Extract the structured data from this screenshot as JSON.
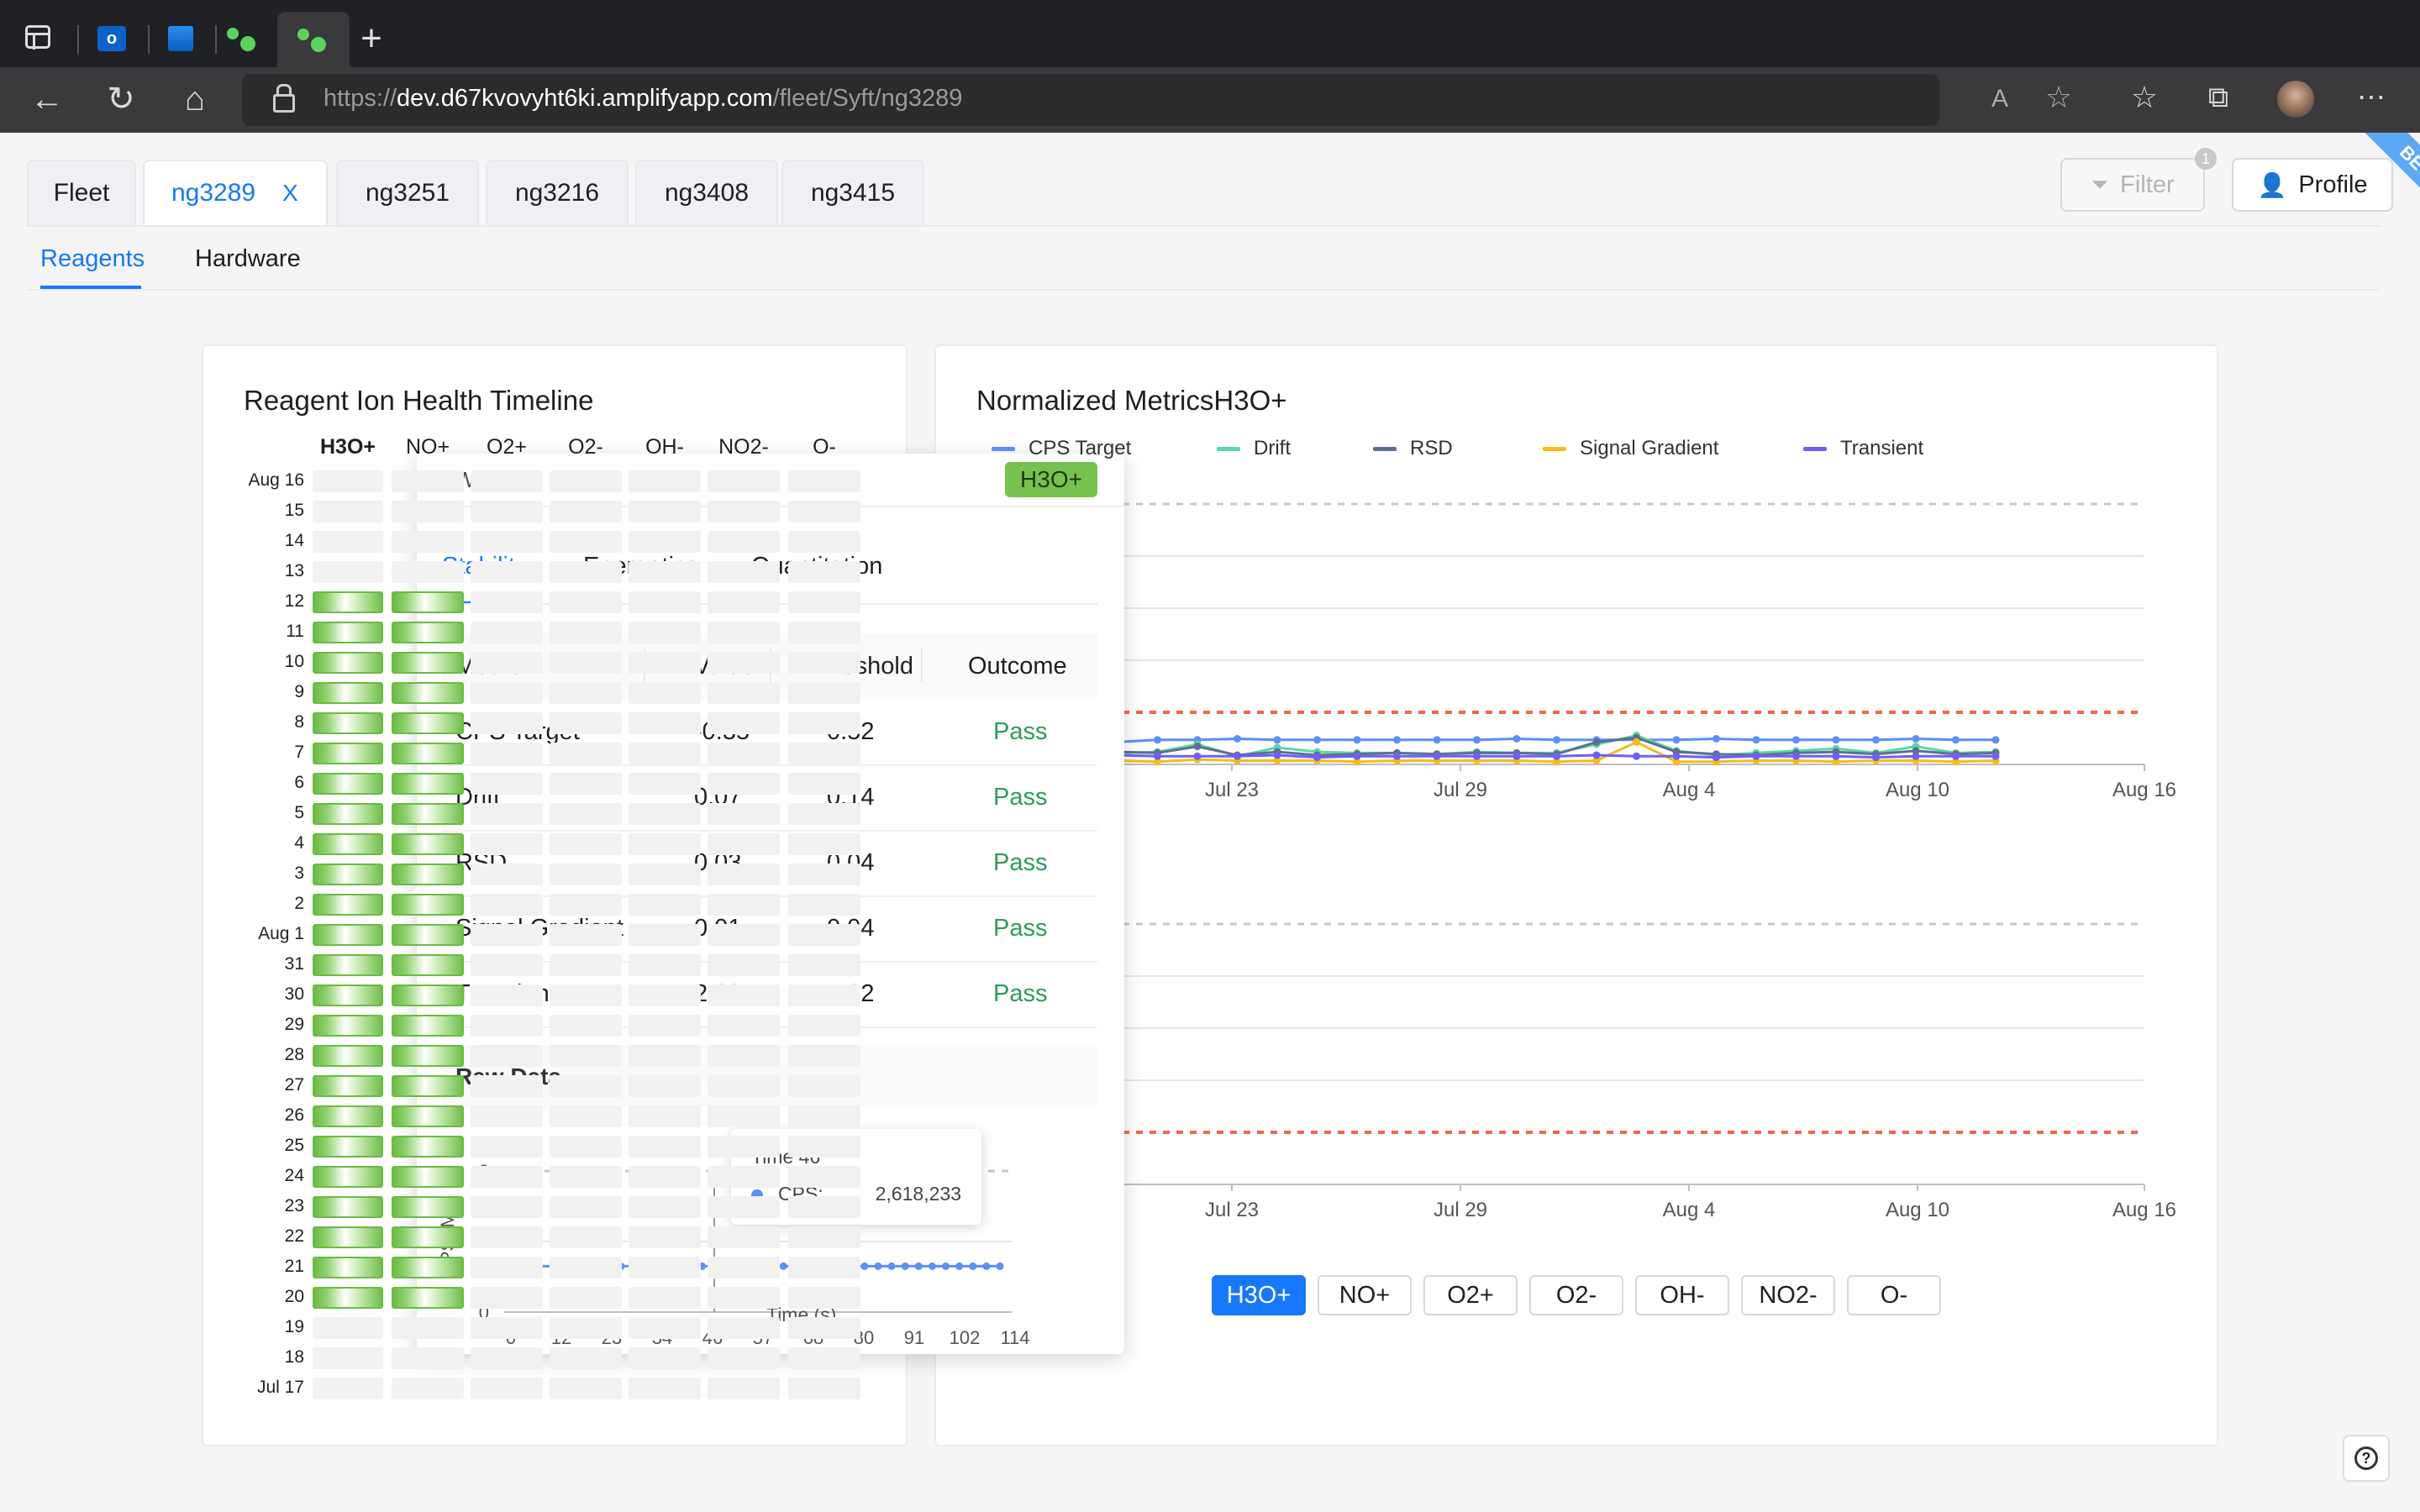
{
  "browser": {
    "url_scheme": "https://",
    "url_host": "dev.d67kvovyht6ki.amplifyapp.com",
    "url_path": "/fleet/Syft/ng3289"
  },
  "header": {
    "tabs": [
      {
        "label": "Fleet",
        "active": false
      },
      {
        "label": "ng3289",
        "active": true,
        "closable": true
      },
      {
        "label": "ng3251",
        "active": false
      },
      {
        "label": "ng3216",
        "active": false
      },
      {
        "label": "ng3408",
        "active": false
      },
      {
        "label": "ng3415",
        "active": false
      }
    ],
    "close_glyph": "X",
    "filter_label": "Filter",
    "filter_badge": "1",
    "profile_label": "Profile",
    "ribbon": "BETA",
    "subtabs": [
      {
        "label": "Reagents",
        "active": true
      },
      {
        "label": "Hardware",
        "active": false
      }
    ]
  },
  "timeline": {
    "title": "Reagent Ion Health Timeline",
    "columns": [
      "H3O+",
      "NO+",
      "O2+",
      "O2-",
      "OH-",
      "NO2-",
      "O-"
    ],
    "rows": [
      "Aug 16",
      "15",
      "14",
      "13",
      "12",
      "11",
      "10",
      "9",
      "8",
      "7",
      "6",
      "5",
      "4",
      "3",
      "2",
      "Aug 1",
      "31",
      "30",
      "29",
      "28",
      "27",
      "26",
      "25",
      "24",
      "23",
      "22",
      "21",
      "20",
      "19",
      "18",
      "Jul 17"
    ],
    "ok_rows_h3o": [
      4,
      5,
      6,
      7,
      8,
      9,
      10,
      11,
      12,
      13,
      14,
      15,
      16,
      17,
      18,
      19,
      20,
      21,
      22,
      23,
      24,
      25,
      26,
      27
    ]
  },
  "popover": {
    "header_left": "+Wet",
    "header_badge": "H3O+",
    "tabs": [
      "Stability",
      "Energetics",
      "Quantitation"
    ],
    "table": {
      "headers": [
        "Metric",
        "Value",
        "Threshold",
        "Outcome"
      ],
      "rows": [
        {
          "metric": "CPS Target",
          "value": "-0.35",
          "threshold": "0.52",
          "outcome": "Pass"
        },
        {
          "metric": "Drift",
          "value": "0.07",
          "threshold": "0.14",
          "outcome": "Pass"
        },
        {
          "metric": "RSD",
          "value": "0.03",
          "threshold": "0.04",
          "outcome": "Pass"
        },
        {
          "metric": "Signal Gradient",
          "value": "0.01",
          "threshold": "0.04",
          "outcome": "Pass"
        },
        {
          "metric": "Transient",
          "value": "2.00",
          "threshold": "7.62",
          "outcome": "Pass"
        }
      ]
    },
    "raw_data_title": "Raw Data",
    "tooltip": {
      "title": "Time 46",
      "series": "CPS:",
      "value": "2,618,233"
    }
  },
  "metrics": {
    "title": "Normalized MetricsH3O+",
    "legend": [
      {
        "name": "CPS Target",
        "color": "#5b8ff9"
      },
      {
        "name": "Drift",
        "color": "#5ad8a6"
      },
      {
        "name": "RSD",
        "color": "#5d7092"
      },
      {
        "name": "Signal Gradient",
        "color": "#f6bd16"
      },
      {
        "name": "Transient",
        "color": "#6f5ef9"
      }
    ],
    "ion_chips": [
      "H3O+",
      "NO+",
      "O2+",
      "O2-",
      "OH-",
      "NO2-",
      "O-"
    ],
    "selected_chip": "H3O+"
  },
  "chart_data": [
    {
      "type": "line",
      "title": "",
      "xlabel": "",
      "ylabel": "",
      "x_ticks": [
        "Jul 23",
        "Jul 29",
        "Aug 4",
        "Aug 10",
        "Aug 16"
      ],
      "series": [
        {
          "name": "CPS Target",
          "values": [
            0.22,
            0.24,
            0.24,
            0.25,
            0.24,
            0.24,
            0.24,
            0.24,
            0.24,
            0.24,
            0.25,
            0.24,
            0.24,
            0.24,
            0.24,
            0.25,
            0.24,
            0.24,
            0.24,
            0.24,
            0.25,
            0.24,
            0.24
          ]
        },
        {
          "name": "Drift",
          "values": [
            0.12,
            0.13,
            0.2,
            0.09,
            0.17,
            0.13,
            0.12,
            0.12,
            0.11,
            0.13,
            0.12,
            0.12,
            0.2,
            0.28,
            0.14,
            0.1,
            0.12,
            0.14,
            0.16,
            0.12,
            0.18,
            0.12,
            0.13
          ]
        },
        {
          "name": "RSD",
          "values": [
            0.13,
            0.12,
            0.18,
            0.1,
            0.13,
            0.1,
            0.11,
            0.12,
            0.11,
            0.12,
            0.12,
            0.11,
            0.22,
            0.26,
            0.13,
            0.11,
            0.1,
            0.12,
            0.13,
            0.11,
            0.14,
            0.11,
            0.12
          ]
        },
        {
          "name": "Signal Gradient",
          "values": [
            0.05,
            0.04,
            0.06,
            0.05,
            0.05,
            0.05,
            0.04,
            0.05,
            0.05,
            0.05,
            0.05,
            0.04,
            0.05,
            0.22,
            0.04,
            0.04,
            0.05,
            0.05,
            0.04,
            0.05,
            0.05,
            0.04,
            0.05
          ]
        },
        {
          "name": "Transient",
          "values": [
            0.1,
            0.09,
            0.09,
            0.09,
            0.1,
            0.08,
            0.09,
            0.09,
            0.09,
            0.09,
            0.09,
            0.09,
            0.1,
            0.09,
            0.09,
            0.08,
            0.09,
            0.09,
            0.09,
            0.08,
            0.09,
            0.09,
            0.09
          ]
        }
      ]
    },
    {
      "type": "line",
      "title": "",
      "x_ticks": [
        "Jul 23",
        "Jul 29",
        "Aug 4",
        "Aug 10",
        "Aug 16"
      ],
      "series": []
    },
    {
      "type": "line",
      "title": "",
      "xlabel": "Time (s)",
      "ylabel": "CPS (M)",
      "ylim": [
        0,
        8
      ],
      "y_ticks": [
        0,
        4,
        8
      ],
      "x_ticks": [
        "0",
        "12",
        "23",
        "34",
        "46",
        "57",
        "68",
        "80",
        "91",
        "102",
        "114"
      ],
      "series": [
        {
          "name": "CPS",
          "values": [
            2.6,
            2.6,
            2.6,
            2.6,
            2.6,
            2.6,
            2.6,
            2.6,
            2.6,
            2.6,
            2.6,
            2.6,
            2.6,
            2.6,
            2.6,
            2.6,
            2.6,
            2.6,
            2.6,
            2.6,
            2.6,
            2.6,
            2.6,
            2.6,
            2.6,
            2.6,
            2.6,
            2.6,
            2.6,
            2.6,
            2.6,
            2.6,
            2.6,
            2.6,
            2.6,
            2.6,
            2.6
          ]
        }
      ]
    }
  ]
}
